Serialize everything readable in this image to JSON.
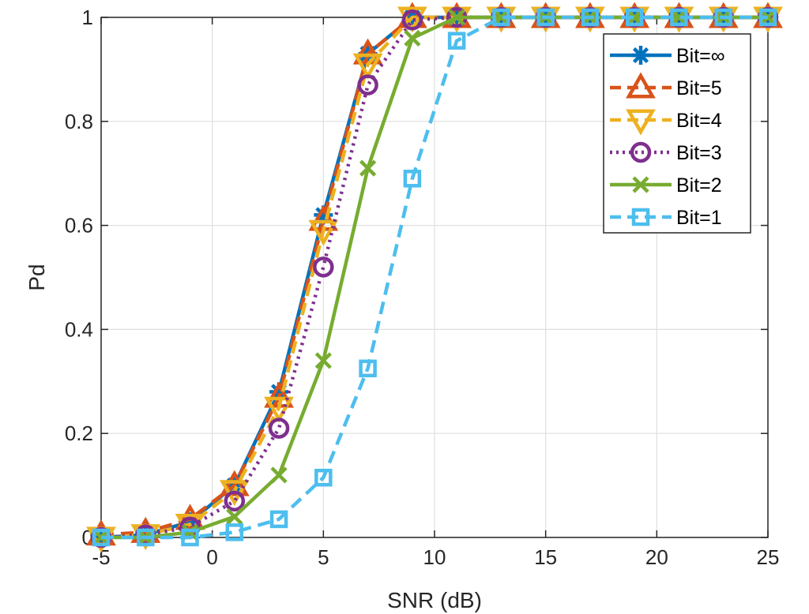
{
  "chart_data": {
    "type": "line",
    "xlabel": "SNR (dB)",
    "ylabel": "Pd",
    "xlim": [
      -5,
      25
    ],
    "ylim": [
      0,
      1
    ],
    "xticks": [
      "-5",
      "0",
      "5",
      "10",
      "15",
      "20",
      "25"
    ],
    "yticks": [
      "0",
      "0.2",
      "0.4",
      "0.6",
      "0.8",
      "1"
    ],
    "grid": true,
    "legend_position": "top-right",
    "x": [
      -5,
      -3,
      -1,
      1,
      3,
      5,
      7,
      9,
      11,
      13,
      15,
      17,
      19,
      21,
      23,
      25
    ],
    "series": [
      {
        "name": "Bit=∞",
        "color": "#0072BD",
        "marker": "asterisk",
        "dash": "solid",
        "values": [
          0.0,
          0.005,
          0.03,
          0.1,
          0.28,
          0.62,
          0.93,
          1.0,
          1.0,
          1.0,
          1.0,
          1.0,
          1.0,
          1.0,
          1.0,
          1.0
        ]
      },
      {
        "name": "Bit=5",
        "color": "#D95319",
        "marker": "triangle-up",
        "dash": "dashed",
        "values": [
          0.005,
          0.01,
          0.035,
          0.1,
          0.27,
          0.61,
          0.93,
          1.0,
          1.0,
          1.0,
          1.0,
          1.0,
          1.0,
          1.0,
          1.0,
          1.0
        ]
      },
      {
        "name": "Bit=4",
        "color": "#EDB120",
        "marker": "triangle-down",
        "dash": "dashed",
        "values": [
          0.0,
          0.005,
          0.025,
          0.09,
          0.25,
          0.59,
          0.91,
          1.0,
          1.0,
          1.0,
          1.0,
          1.0,
          1.0,
          1.0,
          1.0,
          1.0
        ]
      },
      {
        "name": "Bit=3",
        "color": "#7E2F8E",
        "marker": "circle",
        "dash": "dotted",
        "values": [
          0.0,
          0.005,
          0.02,
          0.07,
          0.21,
          0.52,
          0.87,
          0.995,
          1.0,
          1.0,
          1.0,
          1.0,
          1.0,
          1.0,
          1.0,
          1.0
        ]
      },
      {
        "name": "Bit=2",
        "color": "#77AC30",
        "marker": "x",
        "dash": "solid",
        "values": [
          0.0,
          0.0,
          0.01,
          0.04,
          0.12,
          0.34,
          0.71,
          0.96,
          1.0,
          1.0,
          1.0,
          1.0,
          1.0,
          1.0,
          1.0,
          1.0
        ]
      },
      {
        "name": "Bit=1",
        "color": "#4DBEEE",
        "marker": "square",
        "dash": "dashed",
        "values": [
          0.0,
          0.0,
          0.0,
          0.01,
          0.035,
          0.115,
          0.325,
          0.69,
          0.955,
          1.0,
          1.0,
          1.0,
          1.0,
          1.0,
          1.0,
          1.0
        ]
      }
    ]
  }
}
